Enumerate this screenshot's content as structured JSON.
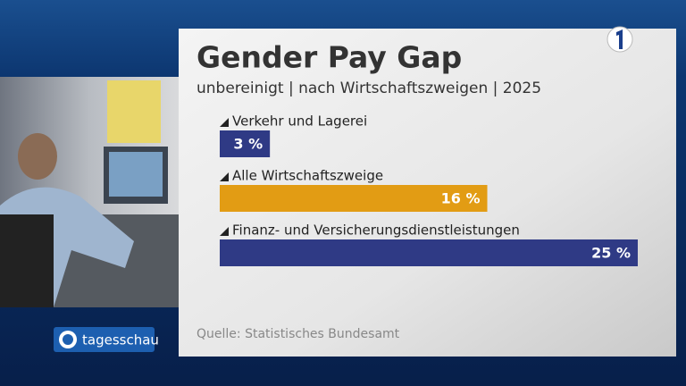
{
  "chart_data": {
    "type": "bar",
    "orientation": "horizontal",
    "title": "Gender Pay Gap",
    "subtitle": "unbereinigt | nach Wirtschaftszweigen | 2025",
    "categories": [
      "Verkehr und Lagerei",
      "Alle Wirtschaftszweige",
      "Finanz- und Versicherungsdienstleistungen"
    ],
    "values": [
      3,
      16,
      25
    ],
    "value_labels": [
      "3 %",
      "16 %",
      "25 %"
    ],
    "colors": [
      "#2f3a85",
      "#e29c14",
      "#2f3a85"
    ],
    "source": "Quelle: Statistisches Bundesamt"
  },
  "branding": "tagesschau"
}
